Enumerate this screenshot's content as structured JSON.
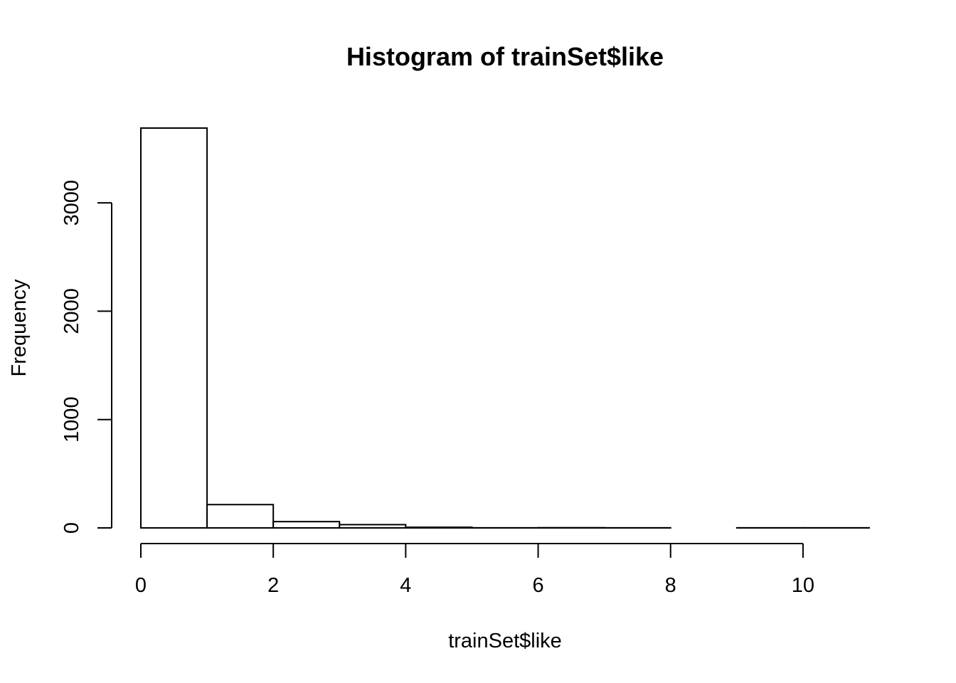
{
  "chart_data": {
    "type": "bar",
    "title": "Histogram of trainSet$like",
    "xlabel": "trainSet$like",
    "ylabel": "Frequency",
    "bins": [
      {
        "start": 0,
        "end": 1,
        "count": 3690
      },
      {
        "start": 1,
        "end": 2,
        "count": 215
      },
      {
        "start": 2,
        "end": 3,
        "count": 58
      },
      {
        "start": 3,
        "end": 4,
        "count": 30
      },
      {
        "start": 4,
        "end": 5,
        "count": 6
      },
      {
        "start": 5,
        "end": 6,
        "count": 1
      },
      {
        "start": 6,
        "end": 7,
        "count": 2
      },
      {
        "start": 7,
        "end": 8,
        "count": 1
      },
      {
        "start": 8,
        "end": 9,
        "count": 0
      },
      {
        "start": 9,
        "end": 10,
        "count": 1
      },
      {
        "start": 10,
        "end": 11,
        "count": 1
      }
    ],
    "xlim": [
      0,
      11
    ],
    "ylim": [
      0,
      3690
    ],
    "x_ticks": [
      "0",
      "2",
      "4",
      "6",
      "8",
      "10"
    ],
    "x_tick_values": [
      0,
      2,
      4,
      6,
      8,
      10
    ],
    "y_ticks": [
      "0",
      "1000",
      "2000",
      "3000"
    ],
    "y_tick_values": [
      0,
      1000,
      2000,
      3000
    ],
    "grid": false,
    "colors": {
      "bar_fill": "#ffffff",
      "bar_stroke": "#000000"
    }
  }
}
